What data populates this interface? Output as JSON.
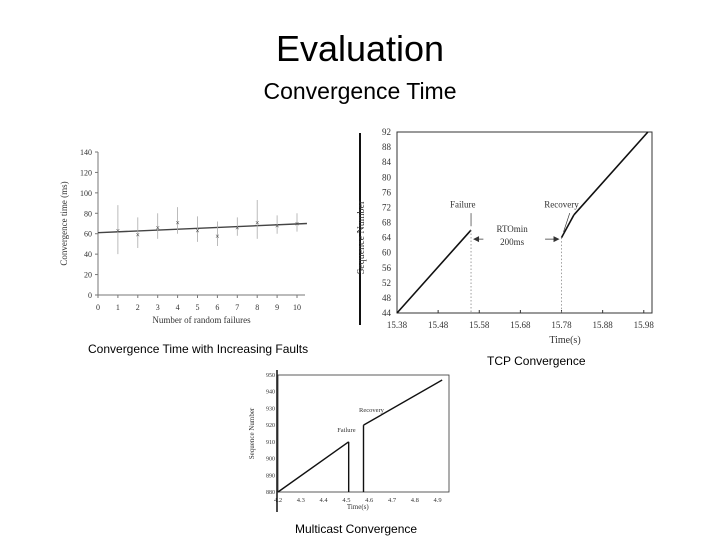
{
  "slide": {
    "title": "Evaluation",
    "subtitle": "Convergence Time"
  },
  "chart_data": [
    {
      "type": "scatter",
      "title": "Convergence Time with Increasing Faults",
      "xlabel": "Number of random failures",
      "ylabel": "Convergence time (ms)",
      "xlim": [
        0,
        10
      ],
      "ylim": [
        0,
        140
      ],
      "xticks": [
        0,
        1,
        2,
        3,
        4,
        5,
        6,
        7,
        8,
        9,
        10
      ],
      "yticks": [
        0,
        20,
        40,
        60,
        80,
        100,
        120,
        140
      ],
      "points": [
        {
          "x": 1,
          "y": 63,
          "lo": 40,
          "hi": 88
        },
        {
          "x": 2,
          "y": 59,
          "lo": 46,
          "hi": 76
        },
        {
          "x": 3,
          "y": 66,
          "lo": 55,
          "hi": 80
        },
        {
          "x": 4,
          "y": 71,
          "lo": 60,
          "hi": 86
        },
        {
          "x": 5,
          "y": 63,
          "lo": 52,
          "hi": 77
        },
        {
          "x": 6,
          "y": 58,
          "lo": 48,
          "hi": 72
        },
        {
          "x": 7,
          "y": 66,
          "lo": 58,
          "hi": 76
        },
        {
          "x": 8,
          "y": 71,
          "lo": 55,
          "hi": 93
        },
        {
          "x": 9,
          "y": 68,
          "lo": 60,
          "hi": 78
        },
        {
          "x": 10,
          "y": 70,
          "lo": 62,
          "hi": 80
        }
      ],
      "fit": [
        [
          0,
          61
        ],
        [
          10.5,
          70
        ]
      ]
    },
    {
      "type": "line",
      "title": "TCP Convergence",
      "xlabel": "Time(s)",
      "ylabel": "Sequence Number",
      "xlim": [
        15.38,
        16.0
      ],
      "ylim": [
        44,
        92
      ],
      "xticks": [
        15.38,
        15.48,
        15.58,
        15.68,
        15.78,
        15.88,
        15.98
      ],
      "yticks": [
        44,
        48,
        52,
        56,
        60,
        64,
        68,
        72,
        76,
        80,
        84,
        88,
        92
      ],
      "segments": [
        [
          [
            15.38,
            44
          ],
          [
            15.56,
            66
          ]
        ],
        [
          [
            15.78,
            64
          ],
          [
            15.81,
            70
          ]
        ],
        [
          [
            15.81,
            70
          ],
          [
            15.99,
            92
          ]
        ]
      ],
      "annotations": [
        {
          "text": "Failure",
          "x": 15.54,
          "y": 72
        },
        {
          "text": "Recovery",
          "x": 15.78,
          "y": 72
        },
        {
          "text": "RTOmin",
          "x": 15.66,
          "y": 65.5
        },
        {
          "text": "200ms",
          "x": 15.66,
          "y": 62
        }
      ],
      "failure_time": 15.56,
      "recovery_time": 15.78
    },
    {
      "type": "line",
      "title": "Multicast Convergence",
      "xlabel": "Time(s)",
      "ylabel": "Sequence Number",
      "xlim": [
        4.2,
        4.95
      ],
      "ylim": [
        880,
        950
      ],
      "xticks": [
        4.2,
        4.3,
        4.4,
        4.5,
        4.6,
        4.7,
        4.8,
        4.9
      ],
      "yticks": [
        880,
        890,
        900,
        910,
        920,
        930,
        940,
        950
      ],
      "segments": [
        [
          [
            4.2,
            880
          ],
          [
            4.51,
            910
          ]
        ],
        [
          [
            4.51,
            910
          ],
          [
            4.51,
            880
          ]
        ],
        [
          [
            4.575,
            880
          ],
          [
            4.575,
            920
          ]
        ],
        [
          [
            4.575,
            920
          ],
          [
            4.92,
            947
          ]
        ]
      ],
      "annotations": [
        {
          "text": "Failure",
          "x": 4.5,
          "y": 916
        },
        {
          "text": "Recovery",
          "x": 4.61,
          "y": 928
        }
      ]
    }
  ]
}
